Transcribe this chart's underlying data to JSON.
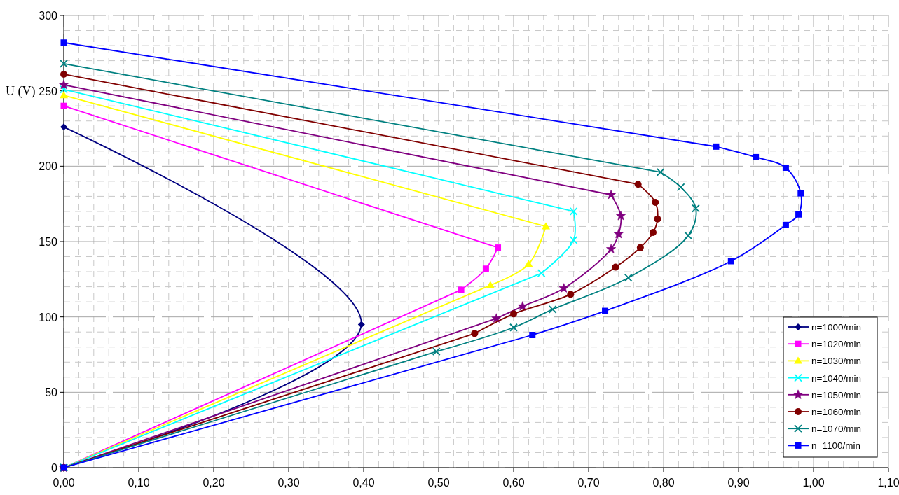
{
  "chart_data": {
    "type": "line",
    "ylabel": "U (V)",
    "xlim": [
      0,
      1.1
    ],
    "ylim": [
      0,
      300
    ],
    "xticks": [
      {
        "value": 0,
        "label": "0,00"
      },
      {
        "value": 0.1,
        "label": "0,10"
      },
      {
        "value": 0.2,
        "label": "0,20"
      },
      {
        "value": 0.3,
        "label": "0,30"
      },
      {
        "value": 0.4,
        "label": "0,40"
      },
      {
        "value": 0.5,
        "label": "0,50"
      },
      {
        "value": 0.6,
        "label": "0,60"
      },
      {
        "value": 0.7,
        "label": "0,70"
      },
      {
        "value": 0.8,
        "label": "0,80"
      },
      {
        "value": 0.9,
        "label": "0,90"
      },
      {
        "value": 1,
        "label": "1,00"
      },
      {
        "value": 1.1,
        "label": "1,10"
      }
    ],
    "yticks": [
      0,
      50,
      100,
      150,
      200,
      250,
      300
    ],
    "grid": true,
    "legend": "bottom right",
    "line_style": "solid",
    "series": [
      {
        "name": "n=1000/min",
        "color": "#000080",
        "marker": "diamond",
        "x": [
          0,
          0.397,
          0
        ],
        "values": [
          226,
          95,
          0
        ]
      },
      {
        "name": "n=1020/min",
        "color": "#ff00ff",
        "marker": "square",
        "x": [
          0,
          0.579,
          0.563,
          0.53,
          0
        ],
        "values": [
          240,
          146,
          132,
          118,
          0
        ]
      },
      {
        "name": "n=1030/min",
        "color": "#ffff00",
        "marker": "triangle",
        "x": [
          0,
          0.643,
          0.62,
          0.569,
          0
        ],
        "values": [
          247,
          160,
          135,
          121,
          0
        ]
      },
      {
        "name": "n=1040/min",
        "color": "#00ffff",
        "marker": "cross",
        "x": [
          0,
          0.68,
          0.68,
          0.637,
          0
        ],
        "values": [
          251,
          170,
          151,
          129,
          0
        ]
      },
      {
        "name": "n=1050/min",
        "color": "#800080",
        "marker": "star",
        "x": [
          0,
          0.73,
          0.743,
          0.74,
          0.73,
          0.667,
          0.612,
          0.577,
          0
        ],
        "values": [
          254,
          181,
          167,
          155,
          145,
          119,
          107,
          99,
          0
        ]
      },
      {
        "name": "n=1060/min",
        "color": "#800000",
        "marker": "circle",
        "x": [
          0,
          0.766,
          0.789,
          0.792,
          0.786,
          0.769,
          0.736,
          0.676,
          0.6,
          0.548,
          0
        ],
        "values": [
          261,
          188,
          176,
          165,
          156,
          146,
          133,
          115,
          102,
          89,
          0
        ]
      },
      {
        "name": "n=1070/min",
        "color": "#008080",
        "marker": "cross",
        "x": [
          0,
          0.796,
          0.823,
          0.843,
          0.833,
          0.753,
          0.652,
          0.6,
          0.497,
          0
        ],
        "values": [
          268,
          196,
          186,
          172,
          154,
          126,
          105,
          93,
          77,
          0
        ]
      },
      {
        "name": "n=1100/min",
        "color": "#0000ff",
        "marker": "square",
        "x": [
          0,
          0.87,
          0.923,
          0.963,
          0.983,
          0.98,
          0.963,
          0.89,
          0.722,
          0.625,
          0
        ],
        "values": [
          282,
          213,
          206,
          199,
          182,
          168,
          161,
          137,
          104,
          88,
          0
        ]
      }
    ]
  }
}
